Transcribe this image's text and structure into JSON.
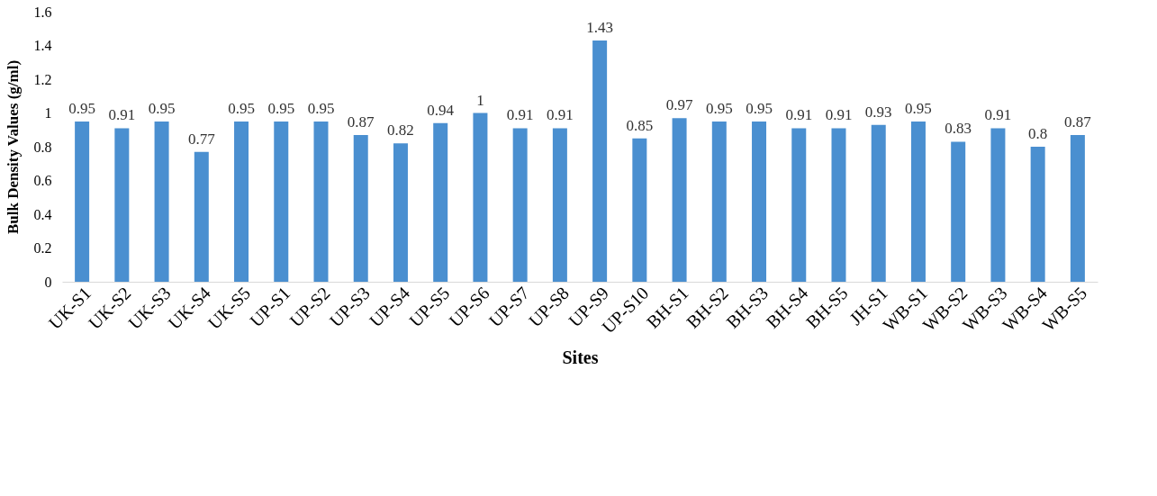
{
  "chart_data": {
    "type": "bar",
    "xlabel": "Sites",
    "ylabel": "Bulk Density Values (g/ml)",
    "categories": [
      "UK-S1",
      "UK-S2",
      "UK-S3",
      "UK-S4",
      "UK-S5",
      "UP-S1",
      "UP-S2",
      "UP-S3",
      "UP-S4",
      "UP-S5",
      "UP-S6",
      "UP-S7",
      "UP-S8",
      "UP-S9",
      "UP-S10",
      "BH-S1",
      "BH-S2",
      "BH-S3",
      "BH-S4",
      "BH-S5",
      "JH-S1",
      "WB-S1",
      "WB-S2",
      "WB-S3",
      "WB-S4",
      "WB-S5"
    ],
    "values": [
      0.95,
      0.91,
      0.95,
      0.77,
      0.95,
      0.95,
      0.95,
      0.87,
      0.82,
      0.94,
      1,
      0.91,
      0.91,
      1.43,
      0.85,
      0.97,
      0.95,
      0.95,
      0.91,
      0.91,
      0.93,
      0.95,
      0.83,
      0.91,
      0.8,
      0.87
    ],
    "color": "#4a8fd0",
    "ylim": [
      0,
      1.6
    ],
    "yticks": [
      0,
      0.2,
      0.4,
      0.6,
      0.8,
      1,
      1.2,
      1.4,
      1.6
    ],
    "grid": false,
    "data_labels": true
  }
}
